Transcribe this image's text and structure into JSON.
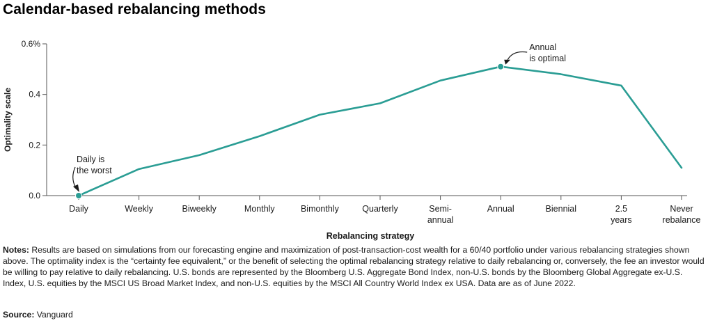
{
  "title": "Calendar-based rebalancing methods",
  "chart_data": {
    "type": "line",
    "title": "Calendar-based rebalancing methods",
    "xlabel": "Rebalancing strategy",
    "ylabel": "Optimality scale",
    "ylim": [
      0,
      0.6
    ],
    "yticks": [
      "0.6%",
      "0.4",
      "0.2",
      "0.0"
    ],
    "ytick_values": [
      0.6,
      0.4,
      0.2,
      0.0
    ],
    "grid": false,
    "categories": [
      [
        "Daily"
      ],
      [
        "Weekly"
      ],
      [
        "Biweekly"
      ],
      [
        "Monthly"
      ],
      [
        "Bimonthly"
      ],
      [
        "Quarterly"
      ],
      [
        "Semi-",
        "annual"
      ],
      [
        "Annual"
      ],
      [
        "Biennial"
      ],
      [
        "2.5",
        "years"
      ],
      [
        "Never",
        "rebalance"
      ]
    ],
    "series": [
      {
        "values": [
          0.0,
          0.105,
          0.16,
          0.235,
          0.32,
          0.365,
          0.455,
          0.51,
          0.48,
          0.435,
          0.11
        ]
      }
    ],
    "annotations": [
      {
        "index": 0,
        "lines": [
          "Daily is",
          "the worst"
        ]
      },
      {
        "index": 7,
        "lines": [
          "Annual",
          "is optimal"
        ]
      }
    ],
    "line_color": "#2a9d94"
  },
  "notes": {
    "label": "Notes:",
    "text": "Results are based on simulations from our forecasting engine and maximization of post-transaction-cost wealth for a 60/40 portfolio under various rebalancing strategies shown above. The optimality index is the “certainty fee equivalent,” or the benefit of selecting the optimal rebalancing strategy relative to daily rebalancing or, conversely, the fee an investor would be willing to pay relative to daily rebalancing. U.S. bonds are represented by the Bloomberg U.S. Aggregate Bond Index, non-U.S. bonds by the Bloomberg Global Aggregate ex-U.S. Index, U.S. equities by the MSCI US Broad Market Index, and non-U.S. equities by the MSCI All Country World Index ex USA. Data are as of June 2022."
  },
  "source": {
    "label": "Source:",
    "text": "Vanguard"
  }
}
